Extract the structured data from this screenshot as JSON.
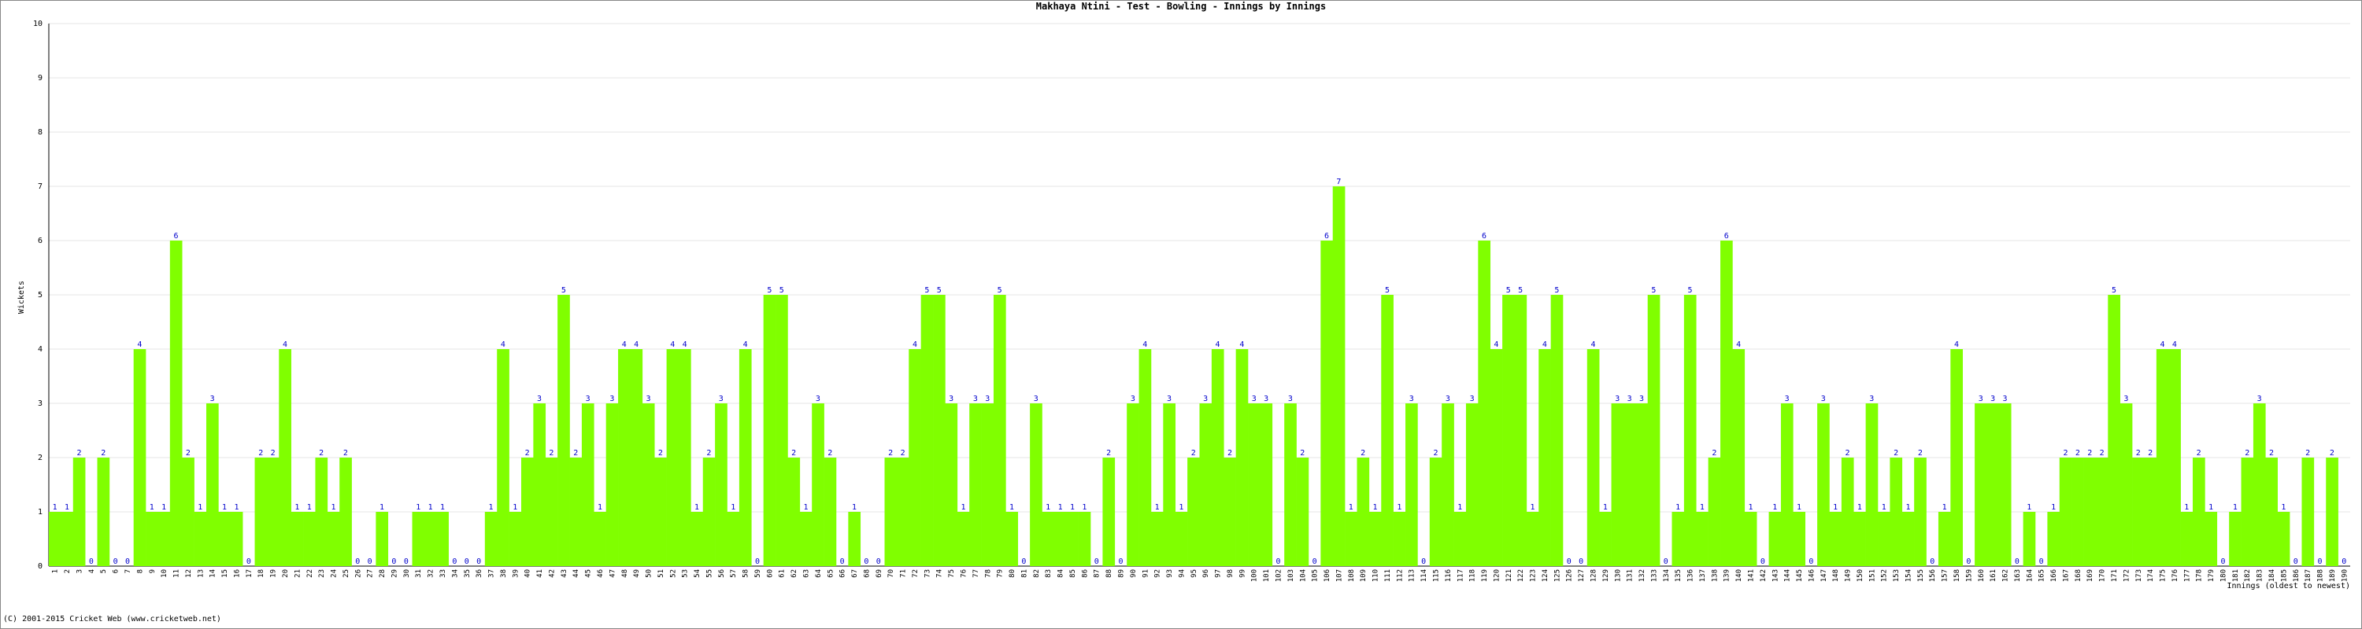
{
  "chart_data": {
    "type": "bar",
    "title": "Makhaya Ntini - Test - Bowling - Innings by Innings",
    "y_label": "Wickets",
    "x_label": "Innings (oldest to newest)",
    "footer": "(C) 2001-2015 Cricket Web (www.cricketweb.net)",
    "color": "#80ff00",
    "label_color": "#0000cc",
    "grid": true,
    "ylim": [
      0,
      10
    ],
    "yticks": [
      0,
      1,
      2,
      3,
      4,
      5,
      6,
      7,
      8,
      9,
      10
    ],
    "categories": [
      "1",
      "2",
      "3",
      "4",
      "5",
      "6",
      "7",
      "8",
      "9",
      "10",
      "11",
      "12",
      "13",
      "14",
      "15",
      "16",
      "17",
      "18",
      "19",
      "20",
      "21",
      "22",
      "23",
      "24",
      "25",
      "26",
      "27",
      "28",
      "29",
      "30",
      "31",
      "32",
      "33",
      "34",
      "35",
      "36",
      "37",
      "38",
      "39",
      "40",
      "41",
      "42",
      "43",
      "44",
      "45",
      "46",
      "47",
      "48",
      "49",
      "50",
      "51",
      "52",
      "53",
      "54",
      "55",
      "56",
      "57",
      "58",
      "59",
      "60",
      "61",
      "62",
      "63",
      "64",
      "65",
      "66",
      "67",
      "68",
      "69",
      "70",
      "71",
      "72",
      "73",
      "74",
      "75",
      "76",
      "77",
      "78",
      "79",
      "80",
      "81",
      "82",
      "83",
      "84",
      "85",
      "86",
      "87",
      "88",
      "89",
      "90",
      "91",
      "92",
      "93",
      "94",
      "95",
      "96",
      "97",
      "98",
      "99",
      "100",
      "101",
      "102",
      "103",
      "104",
      "105",
      "106",
      "107",
      "108",
      "109",
      "110",
      "111",
      "112",
      "113",
      "114",
      "115",
      "116",
      "117",
      "118",
      "119",
      "120",
      "121",
      "122",
      "123",
      "124",
      "125",
      "126",
      "127",
      "128",
      "129",
      "130",
      "131",
      "132",
      "133",
      "134",
      "135",
      "136",
      "137",
      "138",
      "139",
      "140",
      "141",
      "142",
      "143",
      "144",
      "145",
      "146",
      "147",
      "148",
      "149",
      "150",
      "151",
      "152",
      "153",
      "154",
      "155",
      "156",
      "157",
      "158",
      "159",
      "160",
      "161",
      "162",
      "163",
      "164",
      "165",
      "166",
      "167",
      "168",
      "169",
      "170",
      "171",
      "172",
      "173",
      "174",
      "175",
      "176",
      "177",
      "178",
      "179",
      "180",
      "181",
      "182",
      "183",
      "184",
      "185",
      "186",
      "187",
      "188",
      "189",
      "190"
    ],
    "values": [
      1,
      1,
      2,
      0,
      2,
      0,
      0,
      4,
      1,
      1,
      6,
      2,
      1,
      3,
      1,
      1,
      0,
      2,
      2,
      4,
      1,
      1,
      2,
      1,
      2,
      0,
      0,
      1,
      0,
      0,
      1,
      1,
      1,
      0,
      0,
      0,
      1,
      4,
      1,
      2,
      3,
      2,
      5,
      2,
      3,
      1,
      3,
      4,
      4,
      3,
      2,
      4,
      4,
      1,
      2,
      3,
      1,
      4,
      0,
      5,
      5,
      2,
      1,
      3,
      2,
      0,
      1,
      0,
      0,
      2,
      2,
      4,
      5,
      5,
      3,
      1,
      3,
      3,
      5,
      1,
      0,
      3,
      1,
      1,
      1,
      1,
      0,
      2,
      0,
      3,
      4,
      1,
      3,
      1,
      2,
      3,
      4,
      2,
      4,
      3,
      3,
      0,
      3,
      2,
      0,
      6,
      7,
      1,
      2,
      1,
      5,
      1,
      3,
      0,
      2,
      3,
      1,
      3,
      6,
      4,
      5,
      5,
      1,
      4,
      5,
      0,
      0,
      4,
      1,
      3,
      3,
      3,
      5,
      0,
      1,
      5,
      1,
      2,
      6,
      4,
      1,
      0,
      1,
      3,
      1,
      0,
      3,
      1,
      2,
      1,
      3,
      1,
      2,
      1,
      2,
      0,
      1,
      4,
      0,
      3,
      3,
      3,
      0,
      1,
      0,
      1,
      2,
      2,
      2,
      2,
      5,
      3,
      2,
      2,
      4,
      4,
      1,
      2,
      1,
      0,
      1,
      2,
      3,
      2,
      1,
      0,
      2,
      0,
      2,
      0
    ]
  }
}
